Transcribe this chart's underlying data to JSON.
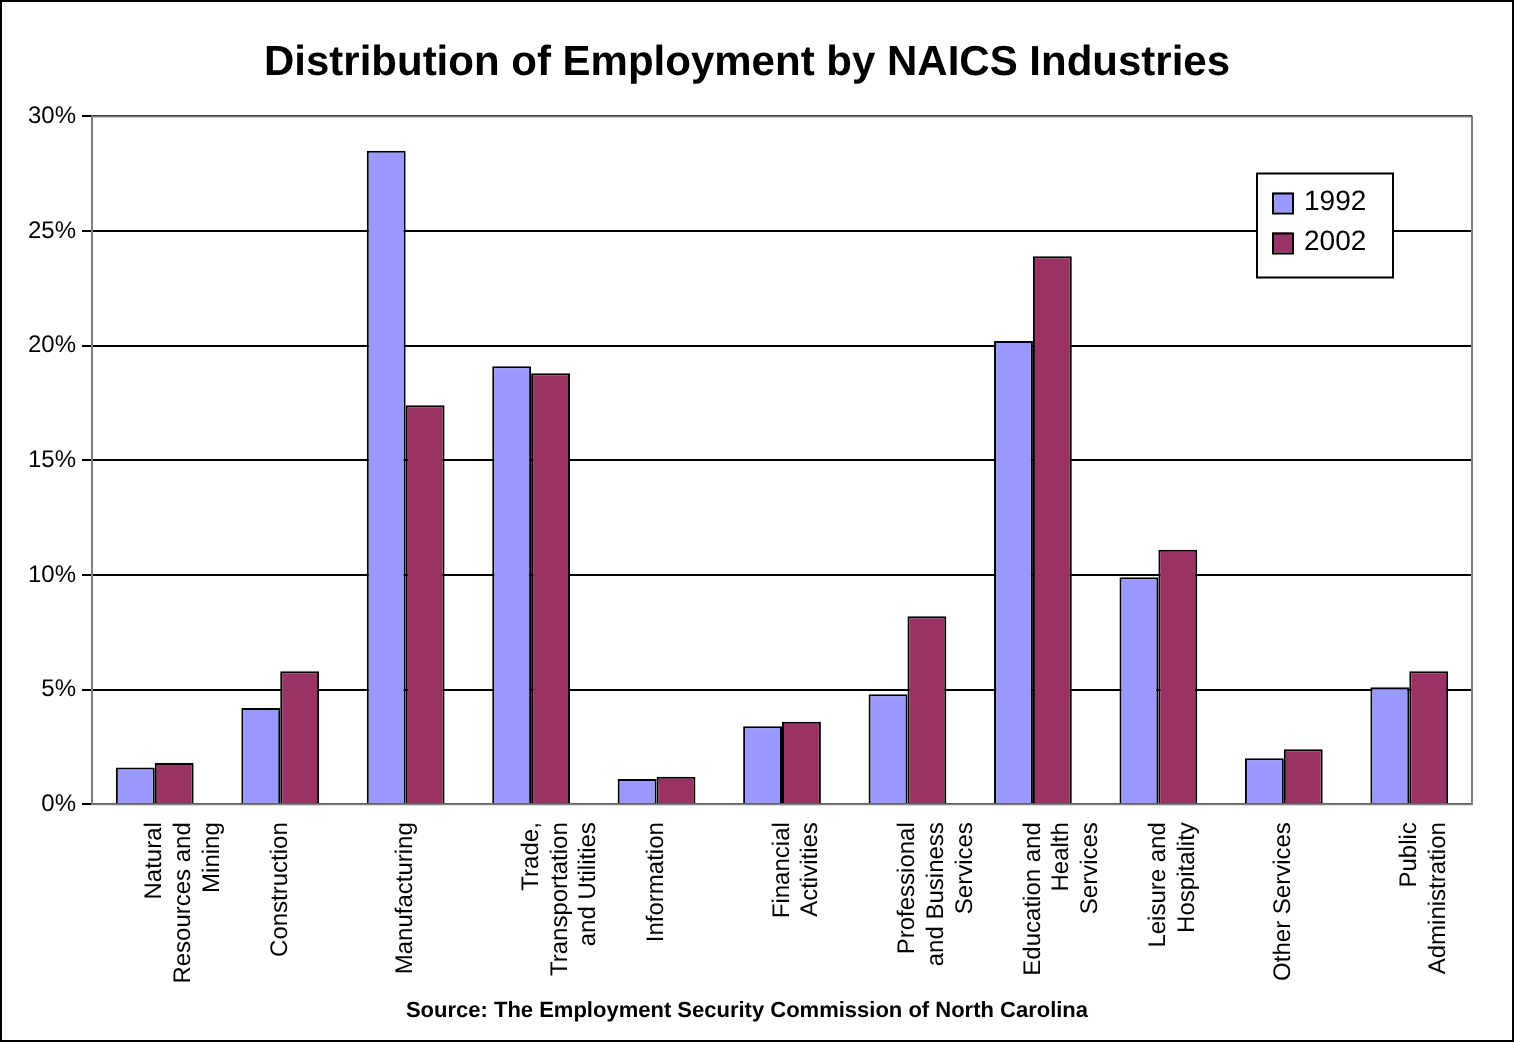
{
  "chart_data": {
    "type": "bar",
    "title": "Distribution of Employment by NAICS Industries",
    "categories": [
      "Natural Resources and Mining",
      "Construction",
      "Manufacturing",
      "Trade, Transportation and Utilities",
      "Information",
      "Financial Activities",
      "Professional and Business Services",
      "Education and Health Services",
      "Leisure and Hospitality",
      "Other Services",
      "Public Administration"
    ],
    "series": [
      {
        "name": "1992",
        "color": "#9999ff",
        "values": [
          1.6,
          4.2,
          28.5,
          19.1,
          1.1,
          3.4,
          4.8,
          20.2,
          9.9,
          2.0,
          5.1
        ]
      },
      {
        "name": "2002",
        "color": "#993366",
        "values": [
          1.8,
          5.8,
          17.4,
          18.8,
          1.2,
          3.6,
          8.2,
          23.9,
          11.1,
          2.4,
          5.8
        ]
      }
    ],
    "ylim": [
      0,
      30
    ],
    "yticks": [
      {
        "value": 0,
        "label": "0%"
      },
      {
        "value": 5,
        "label": "5%"
      },
      {
        "value": 10,
        "label": "10%"
      },
      {
        "value": 15,
        "label": "15%"
      },
      {
        "value": 20,
        "label": "20%"
      },
      {
        "value": 25,
        "label": "25%"
      },
      {
        "value": 30,
        "label": "30%"
      }
    ],
    "grid": "y",
    "legend": "top right",
    "annotations": [
      "Source: The Employment Security Commission of North Carolina"
    ]
  }
}
